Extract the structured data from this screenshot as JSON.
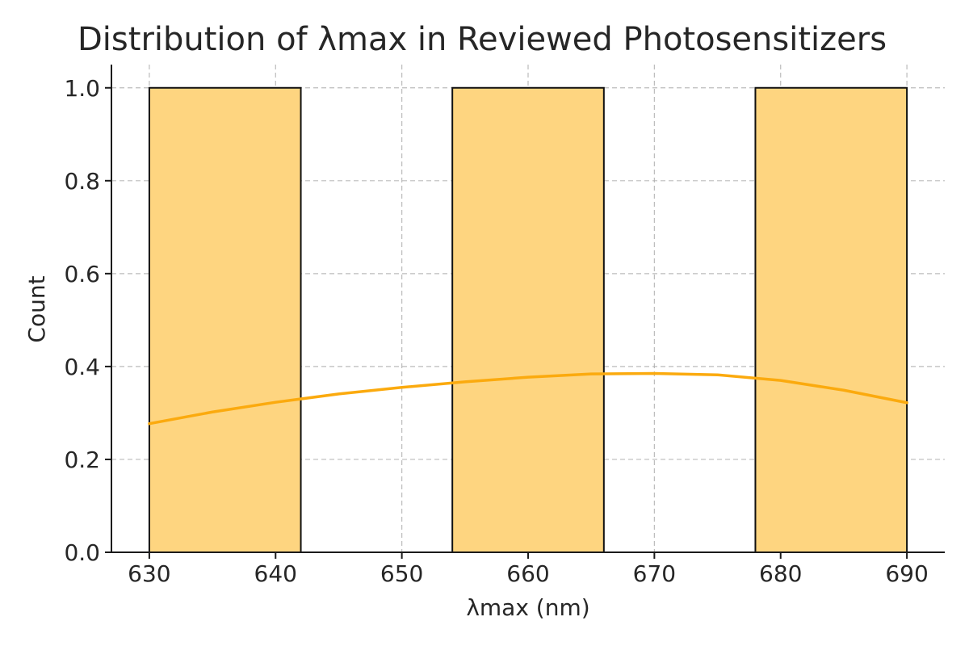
{
  "chart_data": {
    "type": "bar",
    "title": "Distribution of λmax in Reviewed Photosensitizers",
    "xlabel": "λmax (nm)",
    "ylabel": "Count",
    "xlim": [
      627,
      693
    ],
    "ylim": [
      0,
      1.05
    ],
    "xticks": [
      630,
      640,
      650,
      660,
      670,
      680,
      690
    ],
    "yticks": [
      0.0,
      0.2,
      0.4,
      0.6,
      0.8,
      1.0
    ],
    "xtick_labels": [
      "630",
      "640",
      "650",
      "660",
      "670",
      "680",
      "690"
    ],
    "ytick_labels": [
      "0.0",
      "0.2",
      "0.4",
      "0.6",
      "0.8",
      "1.0"
    ],
    "grid": true,
    "bins": [
      {
        "x0": 630,
        "x1": 642,
        "count": 1
      },
      {
        "x0": 642,
        "x1": 654,
        "count": 0
      },
      {
        "x0": 654,
        "x1": 666,
        "count": 1
      },
      {
        "x0": 666,
        "x1": 678,
        "count": 0
      },
      {
        "x0": 678,
        "x1": 690,
        "count": 1
      }
    ],
    "kde": {
      "x": [
        630,
        635,
        640,
        645,
        650,
        655,
        660,
        665,
        670,
        675,
        680,
        685,
        690
      ],
      "y": [
        0.277,
        0.302,
        0.323,
        0.341,
        0.355,
        0.367,
        0.377,
        0.384,
        0.385,
        0.382,
        0.37,
        0.349,
        0.322
      ]
    },
    "colors": {
      "bar_fill": "#fed580",
      "bar_edge": "#111111",
      "kde_line": "#fbaa0e"
    }
  }
}
